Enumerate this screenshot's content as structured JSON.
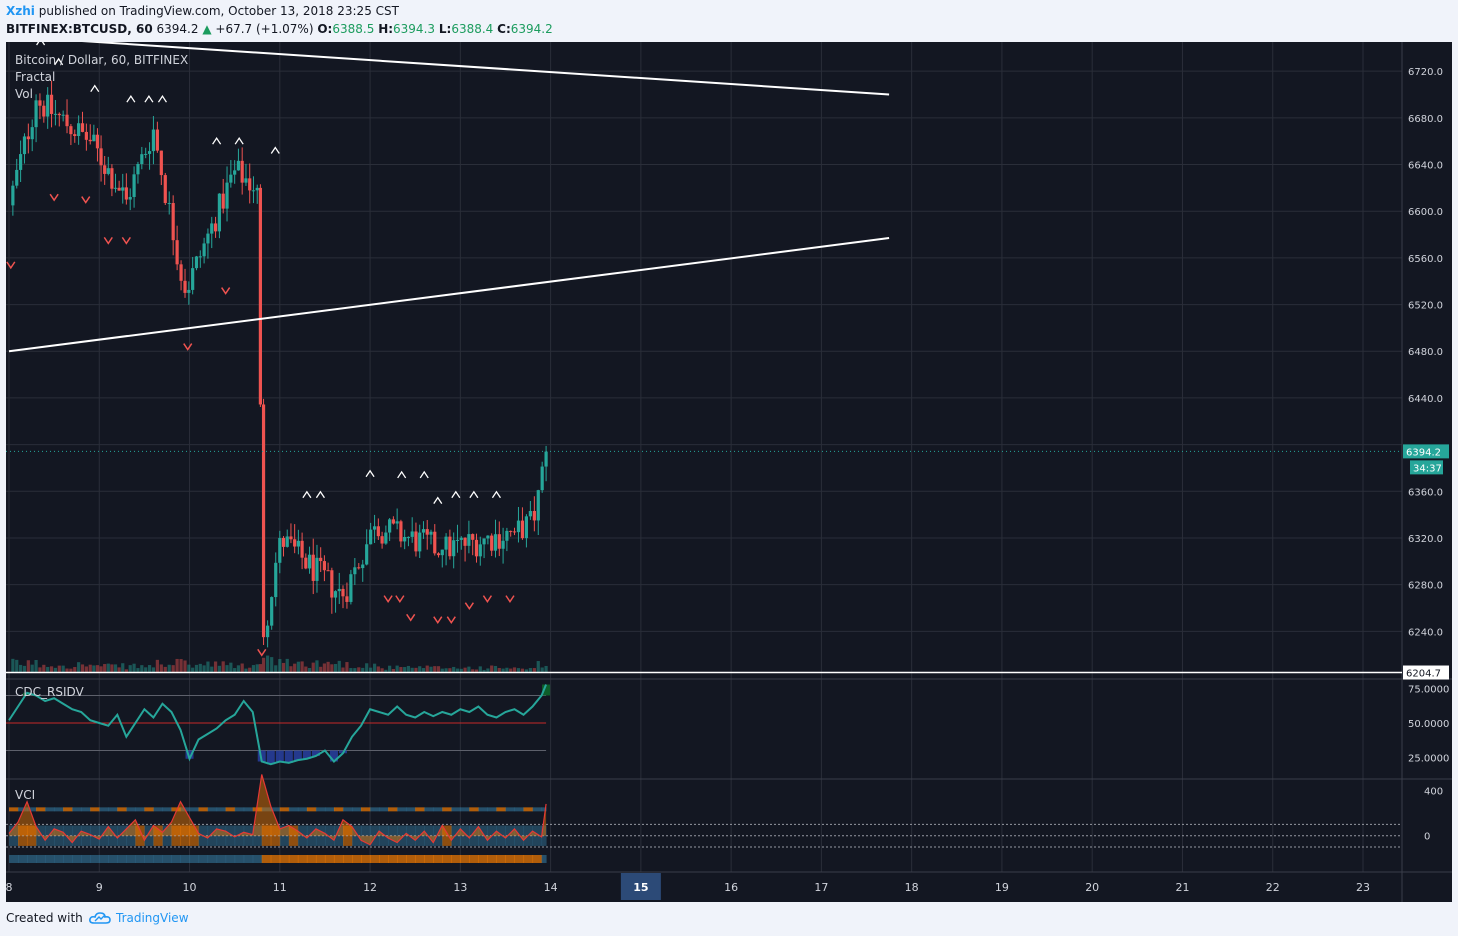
{
  "header": {
    "author": "Xzhi",
    "published_text": "published on TradingView.com, October 13, 2018 23:25 CST",
    "symbol": "BITFINEX:BTCUSD, 60",
    "last": "6394.2",
    "change": "+67.7 (+1.07%)",
    "o_label": "O:",
    "o_value": "6388.5",
    "h_label": "H:",
    "h_value": "6394.3",
    "l_label": "L:",
    "l_value": "6388.4",
    "c_label": "C:",
    "c_value": "6394.2"
  },
  "footer": {
    "created_with": "Created with",
    "brand": "TradingView",
    "logo_icon": "cloud-logo-icon"
  },
  "colors": {
    "background": "#131722",
    "grid": "#2a2e39",
    "up": "#26a69a",
    "down": "#ef5350",
    "trendline": "#ffffff",
    "rsi_line": "#26a69a",
    "rsi_upper_fill": "#0d6b2b",
    "rsi_lower_fill": "#2840a0",
    "vci_orange": "#f57c00",
    "vci_blue": "#2f6a8a",
    "vci_red": "#e53935"
  },
  "chart_data": [
    {
      "type": "candlestick",
      "title": "Bitcoin / Dollar, 60, BITFINEX",
      "indicators": [
        "Fractal",
        "Vol"
      ],
      "x_ticks": [
        "8",
        "9",
        "10",
        "11",
        "12",
        "13",
        "14",
        "15",
        "16",
        "17",
        "18",
        "19",
        "20",
        "21",
        "22",
        "23"
      ],
      "x_highlight": "15",
      "y_ticks": [
        6240,
        6280,
        6320,
        6360,
        6400,
        6440,
        6480,
        6520,
        6560,
        6600,
        6640,
        6680,
        6720
      ],
      "ylim": [
        6200,
        6745
      ],
      "price_label": "6394.2",
      "countdown_label": "34:37",
      "level_label": "6204.7",
      "level_value": 6204.7,
      "last_price": 6394.2,
      "segments": [
        {
          "t0": 8.0,
          "p0": 6605,
          "t1": 8.3,
          "p1": 6695,
          "vol": 0.6
        },
        {
          "t0": 8.3,
          "p0": 6695,
          "t1": 8.9,
          "p1": 6660,
          "vol": 0.5
        },
        {
          "t0": 8.9,
          "p0": 6660,
          "t1": 9.3,
          "p1": 6610,
          "vol": 0.4
        },
        {
          "t0": 9.3,
          "p0": 6610,
          "t1": 9.6,
          "p1": 6670,
          "vol": 0.4
        },
        {
          "t0": 9.6,
          "p0": 6670,
          "t1": 9.95,
          "p1": 6530,
          "vol": 0.6
        },
        {
          "t0": 9.95,
          "p0": 6530,
          "t1": 10.5,
          "p1": 6635,
          "vol": 0.5
        },
        {
          "t0": 10.5,
          "p0": 6635,
          "t1": 10.75,
          "p1": 6620,
          "vol": 0.4
        },
        {
          "t0": 10.75,
          "p0": 6620,
          "t1": 10.82,
          "p1": 6235,
          "vol": 1.0
        },
        {
          "t0": 10.82,
          "p0": 6235,
          "t1": 11.0,
          "p1": 6320,
          "vol": 0.8
        },
        {
          "t0": 11.0,
          "p0": 6320,
          "t1": 11.7,
          "p1": 6270,
          "vol": 0.6
        },
        {
          "t0": 11.7,
          "p0": 6270,
          "t1": 12.05,
          "p1": 6330,
          "vol": 0.5
        },
        {
          "t0": 12.05,
          "p0": 6330,
          "t1": 12.8,
          "p1": 6310,
          "vol": 0.3
        },
        {
          "t0": 12.8,
          "p0": 6310,
          "t1": 13.6,
          "p1": 6325,
          "vol": 0.3
        },
        {
          "t0": 13.6,
          "p0": 6325,
          "t1": 13.82,
          "p1": 6335,
          "vol": 0.2
        },
        {
          "t0": 13.82,
          "p0": 6335,
          "t1": 13.95,
          "p1": 6394,
          "vol": 0.5
        }
      ],
      "trendlines": [
        {
          "t0": 8.0,
          "p0": 6750,
          "t1": 17.75,
          "p1": 6700
        },
        {
          "t0": 8.0,
          "p0": 6480,
          "t1": 17.75,
          "p1": 6577
        }
      ],
      "fractals_up": [
        {
          "t": 8.35,
          "p": 6745
        },
        {
          "t": 8.55,
          "p": 6728
        },
        {
          "t": 8.95,
          "p": 6705
        },
        {
          "t": 9.35,
          "p": 6696
        },
        {
          "t": 9.55,
          "p": 6696
        },
        {
          "t": 9.7,
          "p": 6696
        },
        {
          "t": 10.3,
          "p": 6660
        },
        {
          "t": 10.55,
          "p": 6660
        },
        {
          "t": 10.95,
          "p": 6652
        },
        {
          "t": 11.3,
          "p": 6357
        },
        {
          "t": 11.45,
          "p": 6357
        },
        {
          "t": 12.0,
          "p": 6375
        },
        {
          "t": 12.35,
          "p": 6374
        },
        {
          "t": 12.6,
          "p": 6374
        },
        {
          "t": 12.75,
          "p": 6352
        },
        {
          "t": 12.95,
          "p": 6357
        },
        {
          "t": 13.15,
          "p": 6357
        },
        {
          "t": 13.4,
          "p": 6357
        }
      ],
      "fractals_down": [
        {
          "t": 8.02,
          "p": 6554
        },
        {
          "t": 8.5,
          "p": 6612
        },
        {
          "t": 8.85,
          "p": 6610
        },
        {
          "t": 9.1,
          "p": 6575
        },
        {
          "t": 9.3,
          "p": 6575
        },
        {
          "t": 9.98,
          "p": 6484
        },
        {
          "t": 10.4,
          "p": 6532
        },
        {
          "t": 10.8,
          "p": 6222
        },
        {
          "t": 12.2,
          "p": 6268
        },
        {
          "t": 12.33,
          "p": 6268
        },
        {
          "t": 12.45,
          "p": 6252
        },
        {
          "t": 12.75,
          "p": 6250
        },
        {
          "t": 12.9,
          "p": 6250
        },
        {
          "t": 13.1,
          "p": 6262
        },
        {
          "t": 13.3,
          "p": 6268
        },
        {
          "t": 13.55,
          "p": 6268
        }
      ]
    },
    {
      "type": "line",
      "title": "CDC_RSIDV",
      "y_ticks": [
        "75.0000",
        "50.0000",
        "25.0000"
      ],
      "tick_values": [
        75,
        50,
        25
      ],
      "ylim": [
        10,
        82
      ],
      "upper_level": 70,
      "mid_level": 50,
      "lower_level": 30,
      "x": [
        8.0,
        8.1,
        8.2,
        8.3,
        8.4,
        8.5,
        8.6,
        8.7,
        8.8,
        8.9,
        9.0,
        9.1,
        9.2,
        9.3,
        9.4,
        9.5,
        9.6,
        9.7,
        9.8,
        9.9,
        10.0,
        10.1,
        10.2,
        10.3,
        10.4,
        10.5,
        10.6,
        10.7,
        10.8,
        10.9,
        11.0,
        11.1,
        11.2,
        11.3,
        11.4,
        11.5,
        11.6,
        11.7,
        11.8,
        11.9,
        12.0,
        12.1,
        12.2,
        12.3,
        12.4,
        12.5,
        12.6,
        12.7,
        12.8,
        12.9,
        13.0,
        13.1,
        13.2,
        13.3,
        13.4,
        13.5,
        13.6,
        13.7,
        13.8,
        13.9,
        13.95
      ],
      "values": [
        52,
        62,
        72,
        70,
        66,
        68,
        64,
        60,
        58,
        52,
        50,
        48,
        56,
        40,
        50,
        60,
        54,
        64,
        58,
        45,
        24,
        38,
        42,
        46,
        52,
        56,
        66,
        58,
        22,
        20,
        22,
        21,
        23,
        24,
        26,
        30,
        22,
        28,
        40,
        48,
        60,
        58,
        56,
        62,
        56,
        54,
        58,
        55,
        58,
        56,
        60,
        58,
        62,
        56,
        54,
        58,
        60,
        56,
        62,
        70,
        78
      ]
    },
    {
      "type": "area",
      "title": "VCI",
      "y_ticks": [
        "400",
        "0"
      ],
      "tick_values": [
        400,
        0
      ],
      "ylim": [
        -320,
        500
      ],
      "ref_levels": [
        100,
        0,
        -100
      ],
      "x": [
        8.0,
        8.1,
        8.2,
        8.3,
        8.4,
        8.5,
        8.6,
        8.7,
        8.8,
        8.9,
        9.0,
        9.1,
        9.2,
        9.3,
        9.4,
        9.5,
        9.6,
        9.7,
        9.8,
        9.9,
        10.0,
        10.1,
        10.2,
        10.3,
        10.4,
        10.5,
        10.6,
        10.7,
        10.8,
        10.9,
        11.0,
        11.1,
        11.2,
        11.3,
        11.4,
        11.5,
        11.6,
        11.7,
        11.8,
        11.9,
        12.0,
        12.1,
        12.2,
        12.3,
        12.4,
        12.5,
        12.6,
        12.7,
        12.8,
        12.9,
        13.0,
        13.1,
        13.2,
        13.3,
        13.4,
        13.5,
        13.6,
        13.7,
        13.8,
        13.9,
        13.95
      ],
      "values": [
        20,
        120,
        300,
        80,
        -40,
        60,
        30,
        -60,
        40,
        10,
        -30,
        80,
        -20,
        60,
        140,
        -40,
        90,
        30,
        120,
        300,
        160,
        20,
        -20,
        60,
        40,
        -10,
        30,
        10,
        540,
        260,
        60,
        90,
        40,
        -20,
        60,
        20,
        -40,
        140,
        80,
        -40,
        -80,
        40,
        -20,
        -60,
        20,
        -40,
        40,
        -60,
        90,
        -40,
        60,
        -20,
        80,
        -40,
        40,
        -20,
        60,
        -40,
        40,
        -10,
        280
      ]
    }
  ]
}
